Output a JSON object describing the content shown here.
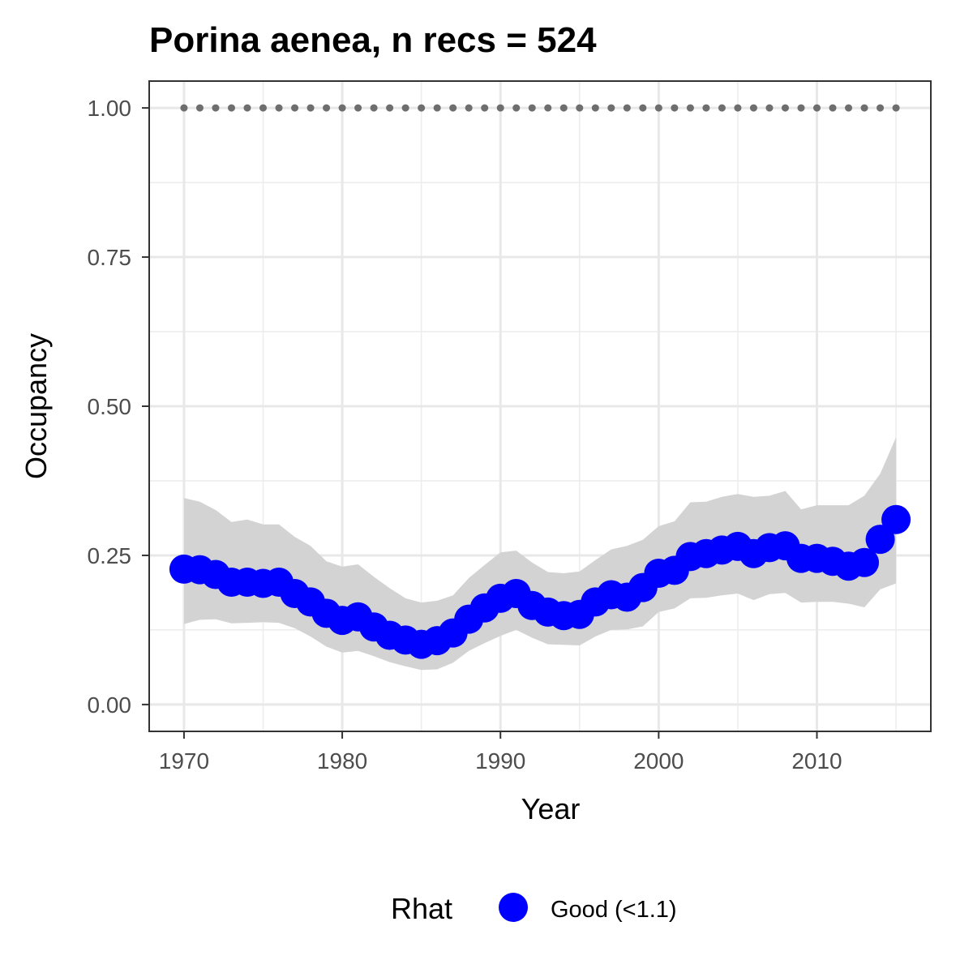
{
  "chart_data": {
    "type": "line",
    "title": "Porina aenea, n recs = 524",
    "xlabel": "Year",
    "ylabel": "Occupancy",
    "xlim": [
      1967.8,
      2017.2
    ],
    "ylim": [
      -0.045,
      1.045
    ],
    "x_ticks": [
      1970,
      1980,
      1990,
      2000,
      2010
    ],
    "x_tick_labels": [
      "1970",
      "1980",
      "1990",
      "2000",
      "2010"
    ],
    "y_ticks": [
      0,
      0.25,
      0.5,
      0.75,
      1.0
    ],
    "y_tick_labels": [
      "0.00",
      "0.25",
      "0.50",
      "0.75",
      "1.00"
    ],
    "grid": true,
    "x": [
      1970,
      1971,
      1972,
      1973,
      1974,
      1975,
      1976,
      1977,
      1978,
      1979,
      1980,
      1981,
      1982,
      1983,
      1984,
      1985,
      1986,
      1987,
      1988,
      1989,
      1990,
      1991,
      1992,
      1993,
      1994,
      1995,
      1996,
      1997,
      1998,
      1999,
      2000,
      2001,
      2002,
      2003,
      2004,
      2005,
      2006,
      2007,
      2008,
      2009,
      2010,
      2011,
      2012,
      2013,
      2014,
      2015
    ],
    "series": [
      {
        "name": "Good (<1.1)",
        "legend_title": "Rhat",
        "color": "#0000ff",
        "values": [
          0.227,
          0.226,
          0.218,
          0.205,
          0.205,
          0.203,
          0.205,
          0.186,
          0.172,
          0.153,
          0.141,
          0.147,
          0.13,
          0.116,
          0.108,
          0.101,
          0.107,
          0.12,
          0.143,
          0.162,
          0.178,
          0.186,
          0.166,
          0.155,
          0.149,
          0.151,
          0.172,
          0.184,
          0.18,
          0.196,
          0.22,
          0.225,
          0.248,
          0.253,
          0.259,
          0.265,
          0.253,
          0.263,
          0.266,
          0.245,
          0.245,
          0.24,
          0.232,
          0.238,
          0.277,
          0.31
        ]
      }
    ],
    "ci_lower": [
      0.135,
      0.142,
      0.143,
      0.136,
      0.137,
      0.138,
      0.137,
      0.128,
      0.114,
      0.097,
      0.087,
      0.09,
      0.081,
      0.071,
      0.064,
      0.058,
      0.059,
      0.07,
      0.09,
      0.103,
      0.115,
      0.125,
      0.112,
      0.101,
      0.1,
      0.099,
      0.114,
      0.125,
      0.126,
      0.131,
      0.155,
      0.161,
      0.178,
      0.179,
      0.183,
      0.186,
      0.175,
      0.185,
      0.187,
      0.171,
      0.172,
      0.172,
      0.169,
      0.163,
      0.193,
      0.203
    ],
    "ci_upper": [
      0.346,
      0.34,
      0.326,
      0.306,
      0.31,
      0.302,
      0.302,
      0.281,
      0.266,
      0.24,
      0.231,
      0.235,
      0.214,
      0.195,
      0.178,
      0.171,
      0.174,
      0.183,
      0.212,
      0.234,
      0.255,
      0.258,
      0.238,
      0.222,
      0.22,
      0.223,
      0.242,
      0.26,
      0.266,
      0.276,
      0.299,
      0.307,
      0.339,
      0.34,
      0.348,
      0.353,
      0.348,
      0.35,
      0.358,
      0.327,
      0.334,
      0.334,
      0.334,
      0.35,
      0.387,
      0.448
    ],
    "reference_line": {
      "y": 1.0,
      "style": "dotted",
      "color": "#6e6e6e"
    },
    "ribbon_color": "#d3d3d3",
    "legend_placement": "bottom"
  }
}
